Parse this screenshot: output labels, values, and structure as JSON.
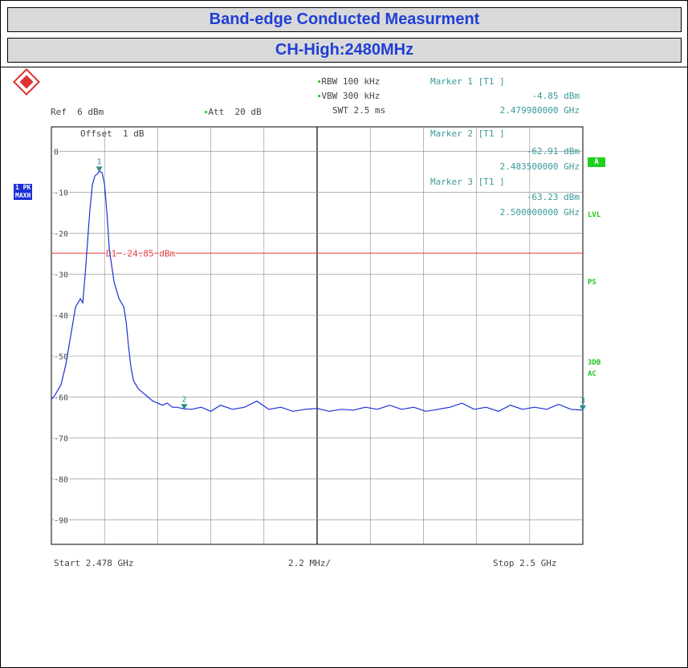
{
  "header": {
    "title": "Band-edge Conducted Measurment",
    "subtitle": "CH-High:2480MHz"
  },
  "settings": {
    "rbw": "RBW 100 kHz",
    "vbw": "VBW 300 kHz",
    "swt": "SWT 2.5 ms",
    "ref": "Ref  6 dBm",
    "att": "Att  20 dB",
    "offset": "Offset  1 dB"
  },
  "markers": [
    {
      "label": "Marker 1 [T1 ]",
      "level": "-4.85 dBm",
      "freq": "2.479980000 GHz",
      "num": "1"
    },
    {
      "label": "Marker 2 [T1 ]",
      "level": "-62.91 dBm",
      "freq": "2.483500000 GHz",
      "num": "2"
    },
    {
      "label": "Marker 3 [T1 ]",
      "level": "-63.23 dBm",
      "freq": "2.500000000 GHz",
      "num": "3"
    }
  ],
  "side_labels": {
    "trace_mode_1": "1 PK",
    "trace_mode_2": "MAXH",
    "a_box": "A",
    "lvl": "LVL",
    "ps": "PS",
    "sdb": "3DB",
    "ac": "AC"
  },
  "footer": {
    "start": "Start 2.478 GHz",
    "span": "2.2 MHz/",
    "stop": "Stop 2.5 GHz"
  },
  "colors": {
    "title": "#1f3fd6",
    "trace": "#1d2fd6",
    "display_line": "#e23b3b",
    "marker": "#2c8c8c",
    "annotation": "#3a9a9a"
  },
  "chart_data": {
    "type": "line",
    "title": "",
    "xlabel": "",
    "ylabel": "",
    "xlim": [
      2.478,
      2.5
    ],
    "ylim": [
      -96,
      6
    ],
    "y_ticks": [
      0,
      -10,
      -20,
      -30,
      -40,
      -50,
      -60,
      -70,
      -80,
      -90
    ],
    "y_tick_labels": [
      "0",
      "-10",
      "-20",
      "-30",
      "-40",
      "-50",
      "-60",
      "-70",
      "-80",
      "-90"
    ],
    "grid": true,
    "display_line": {
      "name": "D1",
      "value": -24.85,
      "label": "D1 -24.85 dBm"
    },
    "series": [
      {
        "x": [
          2.478,
          2.4781,
          2.4782,
          2.4784,
          2.4786,
          2.4788,
          2.479,
          2.4792,
          2.4793,
          2.4794,
          2.4795,
          2.4796,
          2.4797,
          2.4798,
          2.4799,
          2.47998,
          2.4801,
          2.4802,
          2.4803,
          2.4804,
          2.4806,
          2.4808,
          2.481,
          2.4811,
          2.4812,
          2.4813,
          2.4814,
          2.4816,
          2.4818,
          2.482,
          2.4822,
          2.4824,
          2.4826,
          2.4828,
          2.483,
          2.4832,
          2.4835,
          2.4838,
          2.4842,
          2.4846,
          2.485,
          2.4855,
          2.486,
          2.4865,
          2.487,
          2.4875,
          2.488,
          2.4885,
          2.489,
          2.4895,
          2.49,
          2.4905,
          2.491,
          2.4915,
          2.492,
          2.4925,
          2.493,
          2.4935,
          2.494,
          2.4945,
          2.495,
          2.4955,
          2.496,
          2.4965,
          2.497,
          2.4975,
          2.498,
          2.4985,
          2.499,
          2.4995,
          2.5
        ],
        "y": [
          -60.5,
          -60,
          -59,
          -57,
          -52,
          -45,
          -38,
          -36,
          -37,
          -30,
          -22,
          -14,
          -8,
          -6,
          -5.5,
          -4.85,
          -5.2,
          -8,
          -15,
          -24,
          -32,
          -36,
          -38,
          -42,
          -48,
          -53,
          -56,
          -58,
          -59,
          -60,
          -61,
          -61.5,
          -62,
          -61.5,
          -62.5,
          -62.5,
          -62.91,
          -63,
          -62.5,
          -63.5,
          -62,
          -63,
          -62.5,
          -61,
          -63,
          -62.5,
          -63.5,
          -63,
          -62.8,
          -63.5,
          -63,
          -63.2,
          -62.5,
          -63,
          -62,
          -63,
          -62.5,
          -63.5,
          -63,
          -62.5,
          -61.5,
          -63,
          -62.5,
          -63.5,
          -62,
          -63,
          -62.5,
          -63,
          -61.8,
          -63,
          -63.23
        ]
      }
    ]
  }
}
